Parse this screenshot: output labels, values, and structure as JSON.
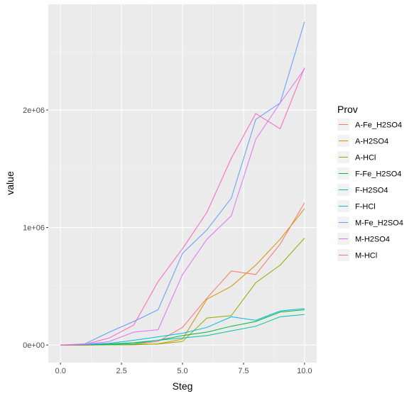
{
  "chart_data": {
    "type": "line",
    "title": "",
    "xlabel": "Steg",
    "ylabel": "value",
    "xlim": [
      -0.5,
      10.5
    ],
    "ylim": [
      -150000,
      2900000
    ],
    "x_ticks": [
      0,
      2.5,
      5,
      7.5,
      10
    ],
    "x_tick_labels": [
      "0.0",
      "2.5",
      "5.0",
      "7.5",
      "10.0"
    ],
    "y_ticks": [
      0,
      1000000,
      2000000
    ],
    "y_tick_labels": [
      "0e+00",
      "1e+06",
      "2e+06"
    ],
    "grid": true,
    "legend": {
      "title": "Prov",
      "position": "right"
    },
    "x": [
      0,
      1,
      2,
      3,
      4,
      5,
      6,
      7,
      8,
      9,
      10
    ],
    "series": [
      {
        "name": "A-Fe_H2SO4",
        "color": "#F8766D",
        "values": [
          0,
          0,
          2000,
          5000,
          30000,
          150000,
          400000,
          630000,
          600000,
          860000,
          1210000
        ]
      },
      {
        "name": "A-H2SO4",
        "color": "#D39200",
        "values": [
          0,
          0,
          1000,
          3000,
          10000,
          50000,
          390000,
          500000,
          680000,
          900000,
          1160000
        ]
      },
      {
        "name": "A-HCl",
        "color": "#93AA00",
        "values": [
          0,
          0,
          1000,
          3000,
          8000,
          30000,
          230000,
          250000,
          530000,
          680000,
          910000
        ]
      },
      {
        "name": "F-Fe_H2SO4",
        "color": "#00BA38",
        "values": [
          0,
          3000,
          8000,
          20000,
          40000,
          80000,
          110000,
          160000,
          200000,
          280000,
          300000
        ]
      },
      {
        "name": "F-H2SO4",
        "color": "#00C19F",
        "values": [
          0,
          2000,
          5000,
          10000,
          40000,
          60000,
          80000,
          120000,
          160000,
          240000,
          260000
        ]
      },
      {
        "name": "F-HCl",
        "color": "#00B9E3",
        "values": [
          0,
          5000,
          15000,
          40000,
          70000,
          100000,
          150000,
          240000,
          210000,
          290000,
          310000
        ]
      },
      {
        "name": "M-Fe_H2SO4",
        "color": "#619CFF",
        "values": [
          0,
          10000,
          110000,
          200000,
          300000,
          780000,
          980000,
          1250000,
          1920000,
          2060000,
          2750000
        ]
      },
      {
        "name": "M-H2SO4",
        "color": "#DB72FB",
        "values": [
          0,
          5000,
          30000,
          110000,
          130000,
          600000,
          900000,
          1100000,
          1750000,
          2060000,
          2350000
        ]
      },
      {
        "name": "M-HCl",
        "color": "#FF61C3",
        "values": [
          0,
          5000,
          60000,
          170000,
          540000,
          820000,
          1130000,
          1590000,
          1970000,
          1840000,
          2360000
        ]
      }
    ]
  }
}
